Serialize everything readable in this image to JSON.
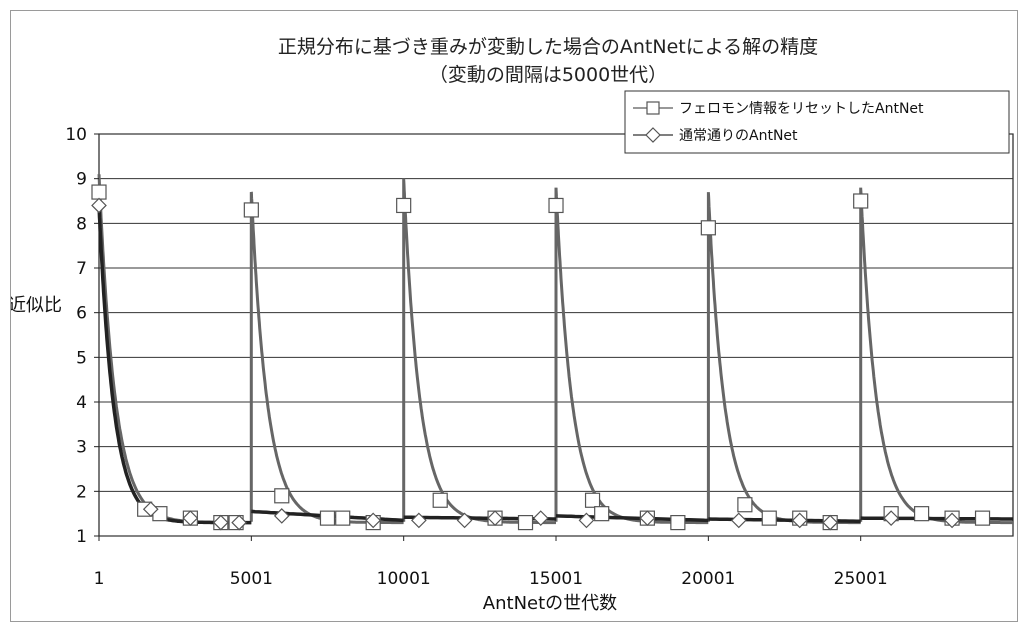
{
  "chart_data": {
    "type": "line",
    "title": "正規分布に基づき重みが変動した場合のAntNetによる解の精度",
    "subtitle": "（変動の間隔は5000世代）",
    "xlabel": "AntNetの世代数",
    "ylabel": "近似比",
    "xlim": [
      1,
      30000
    ],
    "ylim": [
      1,
      10
    ],
    "x_ticks": [
      1,
      5001,
      10001,
      15001,
      20001,
      25001
    ],
    "x_tick_labels": [
      "1",
      "5001",
      "10001",
      "15001",
      "20001",
      "25001"
    ],
    "y_ticks": [
      1,
      2,
      3,
      4,
      5,
      6,
      7,
      8,
      9,
      10
    ],
    "y_tick_labels": [
      "1",
      "2",
      "3",
      "4",
      "5",
      "6",
      "7",
      "8",
      "9",
      "10"
    ],
    "grid": "horizontal",
    "legend_position": "top-right",
    "change_interval": 5000,
    "series": [
      {
        "name": "フェロモン情報をリセットしたAntNet",
        "marker": "square",
        "color": "#666666",
        "segment_starts": [
          1,
          5001,
          10001,
          15001,
          20001,
          25001
        ],
        "peaks": [
          9.1,
          8.7,
          9.0,
          8.8,
          8.7,
          8.8
        ],
        "floor": 1.3,
        "marker_points": [
          {
            "x": 1,
            "y": 8.7
          },
          {
            "x": 5001,
            "y": 8.3
          },
          {
            "x": 10001,
            "y": 8.4
          },
          {
            "x": 15001,
            "y": 8.4
          },
          {
            "x": 20001,
            "y": 7.9
          },
          {
            "x": 25001,
            "y": 8.5
          },
          {
            "x": 1500,
            "y": 1.6
          },
          {
            "x": 2000,
            "y": 1.5
          },
          {
            "x": 3000,
            "y": 1.4
          },
          {
            "x": 4000,
            "y": 1.3
          },
          {
            "x": 4500,
            "y": 1.3
          },
          {
            "x": 6000,
            "y": 1.9
          },
          {
            "x": 7500,
            "y": 1.4
          },
          {
            "x": 8000,
            "y": 1.4
          },
          {
            "x": 9000,
            "y": 1.3
          },
          {
            "x": 11200,
            "y": 1.8
          },
          {
            "x": 13000,
            "y": 1.4
          },
          {
            "x": 14000,
            "y": 1.3
          },
          {
            "x": 16200,
            "y": 1.8
          },
          {
            "x": 16500,
            "y": 1.5
          },
          {
            "x": 18000,
            "y": 1.4
          },
          {
            "x": 19000,
            "y": 1.3
          },
          {
            "x": 21200,
            "y": 1.7
          },
          {
            "x": 22000,
            "y": 1.4
          },
          {
            "x": 23000,
            "y": 1.4
          },
          {
            "x": 24000,
            "y": 1.3
          },
          {
            "x": 26000,
            "y": 1.5
          },
          {
            "x": 27000,
            "y": 1.5
          },
          {
            "x": 28000,
            "y": 1.4
          },
          {
            "x": 29000,
            "y": 1.4
          }
        ]
      },
      {
        "name": "通常通りのAntNet",
        "marker": "diamond",
        "color": "#222222",
        "segment_starts": [
          1
        ],
        "peaks": [
          8.4
        ],
        "plateaus": [
          {
            "from": 5001,
            "to": 10000,
            "start": 1.55,
            "end": 1.35
          },
          {
            "from": 10001,
            "to": 15000,
            "start": 1.42,
            "end": 1.38
          },
          {
            "from": 15001,
            "to": 20000,
            "start": 1.45,
            "end": 1.35
          },
          {
            "from": 20001,
            "to": 25000,
            "start": 1.38,
            "end": 1.33
          },
          {
            "from": 25001,
            "to": 30000,
            "start": 1.4,
            "end": 1.38
          }
        ],
        "floor": 1.3,
        "marker_points": [
          {
            "x": 1,
            "y": 8.4
          },
          {
            "x": 1700,
            "y": 1.6
          },
          {
            "x": 3000,
            "y": 1.4
          },
          {
            "x": 4000,
            "y": 1.3
          },
          {
            "x": 4600,
            "y": 1.3
          },
          {
            "x": 6000,
            "y": 1.45
          },
          {
            "x": 9000,
            "y": 1.35
          },
          {
            "x": 10500,
            "y": 1.35
          },
          {
            "x": 12000,
            "y": 1.35
          },
          {
            "x": 13000,
            "y": 1.4
          },
          {
            "x": 14500,
            "y": 1.4
          },
          {
            "x": 16000,
            "y": 1.35
          },
          {
            "x": 18000,
            "y": 1.4
          },
          {
            "x": 21000,
            "y": 1.35
          },
          {
            "x": 23000,
            "y": 1.35
          },
          {
            "x": 24000,
            "y": 1.3
          },
          {
            "x": 26000,
            "y": 1.4
          },
          {
            "x": 28000,
            "y": 1.35
          }
        ]
      }
    ]
  }
}
